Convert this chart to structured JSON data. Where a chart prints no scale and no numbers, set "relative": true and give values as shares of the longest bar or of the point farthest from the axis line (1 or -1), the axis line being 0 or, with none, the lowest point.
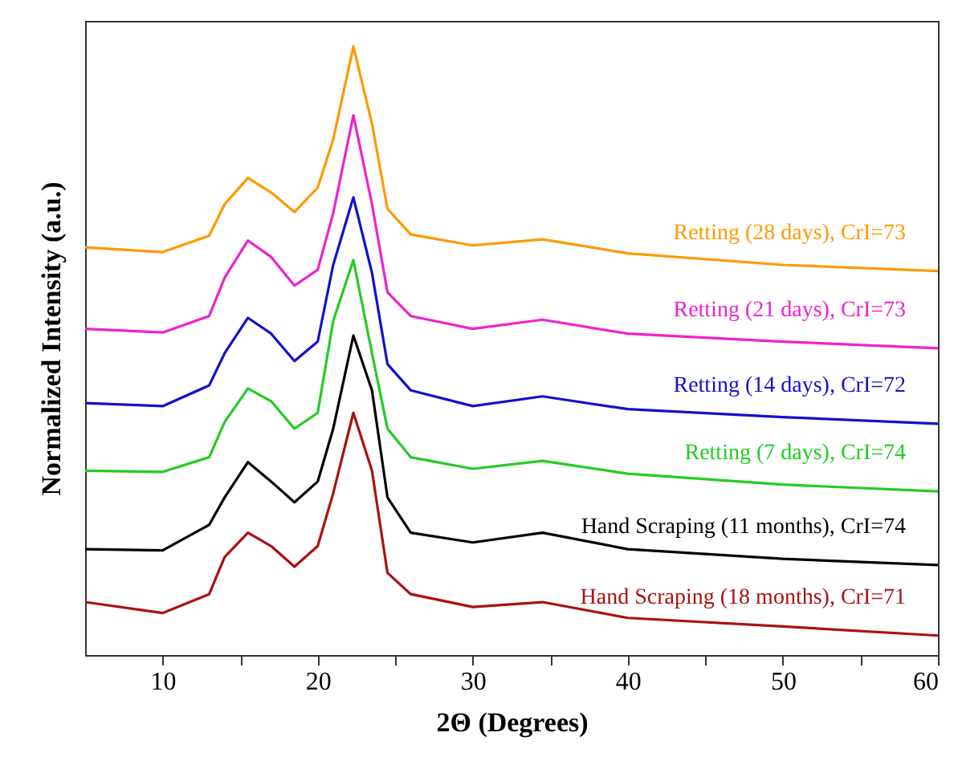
{
  "chart_data": {
    "type": "line",
    "xlabel": "2Θ (Degrees)",
    "ylabel": "Normalized Intensity (a.u.)",
    "relative": true,
    "xlim": [
      5,
      60
    ],
    "xticks": [
      10,
      {
        "value": 15,
        "label": null
      },
      20,
      {
        "value": 25,
        "label": null
      },
      30,
      {
        "value": 35,
        "label": null
      },
      40,
      {
        "value": 45,
        "label": null
      },
      50,
      {
        "value": 55,
        "label": null
      },
      60
    ],
    "x": [
      5,
      10,
      13,
      14,
      15.5,
      17,
      18.5,
      20,
      21,
      22.3,
      23.5,
      24.5,
      26,
      30,
      34.5,
      40,
      50,
      60
    ],
    "series": [
      {
        "name": "Retting (28 days), CrI=73",
        "color": "#ff9900",
        "values": [
          0.67,
          0.662,
          0.689,
          0.741,
          0.784,
          0.76,
          0.728,
          0.768,
          0.847,
          1.0,
          0.873,
          0.733,
          0.691,
          0.673,
          0.683,
          0.66,
          0.641,
          0.631
        ]
      },
      {
        "name": "Retting (21 days), CrI=73",
        "color": "#ee22cc",
        "values": [
          0.536,
          0.53,
          0.557,
          0.62,
          0.681,
          0.654,
          0.607,
          0.633,
          0.726,
          0.887,
          0.741,
          0.596,
          0.557,
          0.536,
          0.551,
          0.528,
          0.515,
          0.504
        ]
      },
      {
        "name": "Retting (14 days), CrI=72",
        "color": "#1111cc",
        "values": [
          0.414,
          0.409,
          0.443,
          0.496,
          0.554,
          0.528,
          0.483,
          0.515,
          0.641,
          0.752,
          0.628,
          0.478,
          0.435,
          0.409,
          0.425,
          0.404,
          0.391,
          0.38
        ]
      },
      {
        "name": "Retting (7 days), CrI=74",
        "color": "#22cc22",
        "values": [
          0.303,
          0.301,
          0.325,
          0.383,
          0.438,
          0.417,
          0.372,
          0.398,
          0.549,
          0.649,
          0.496,
          0.372,
          0.325,
          0.306,
          0.319,
          0.298,
          0.28,
          0.269
        ]
      },
      {
        "name": "Hand Scraping (11 months), CrI=74",
        "color": "#000000",
        "values": [
          0.174,
          0.172,
          0.214,
          0.259,
          0.317,
          0.285,
          0.251,
          0.285,
          0.372,
          0.525,
          0.435,
          0.259,
          0.201,
          0.185,
          0.201,
          0.174,
          0.158,
          0.148
        ]
      },
      {
        "name": "Hand Scraping (18 months), CrI=71",
        "color": "#aa1111",
        "values": [
          0.087,
          0.069,
          0.1,
          0.161,
          0.201,
          0.179,
          0.145,
          0.179,
          0.266,
          0.398,
          0.303,
          0.135,
          0.1,
          0.079,
          0.087,
          0.061,
          0.047,
          0.032
        ]
      }
    ]
  }
}
